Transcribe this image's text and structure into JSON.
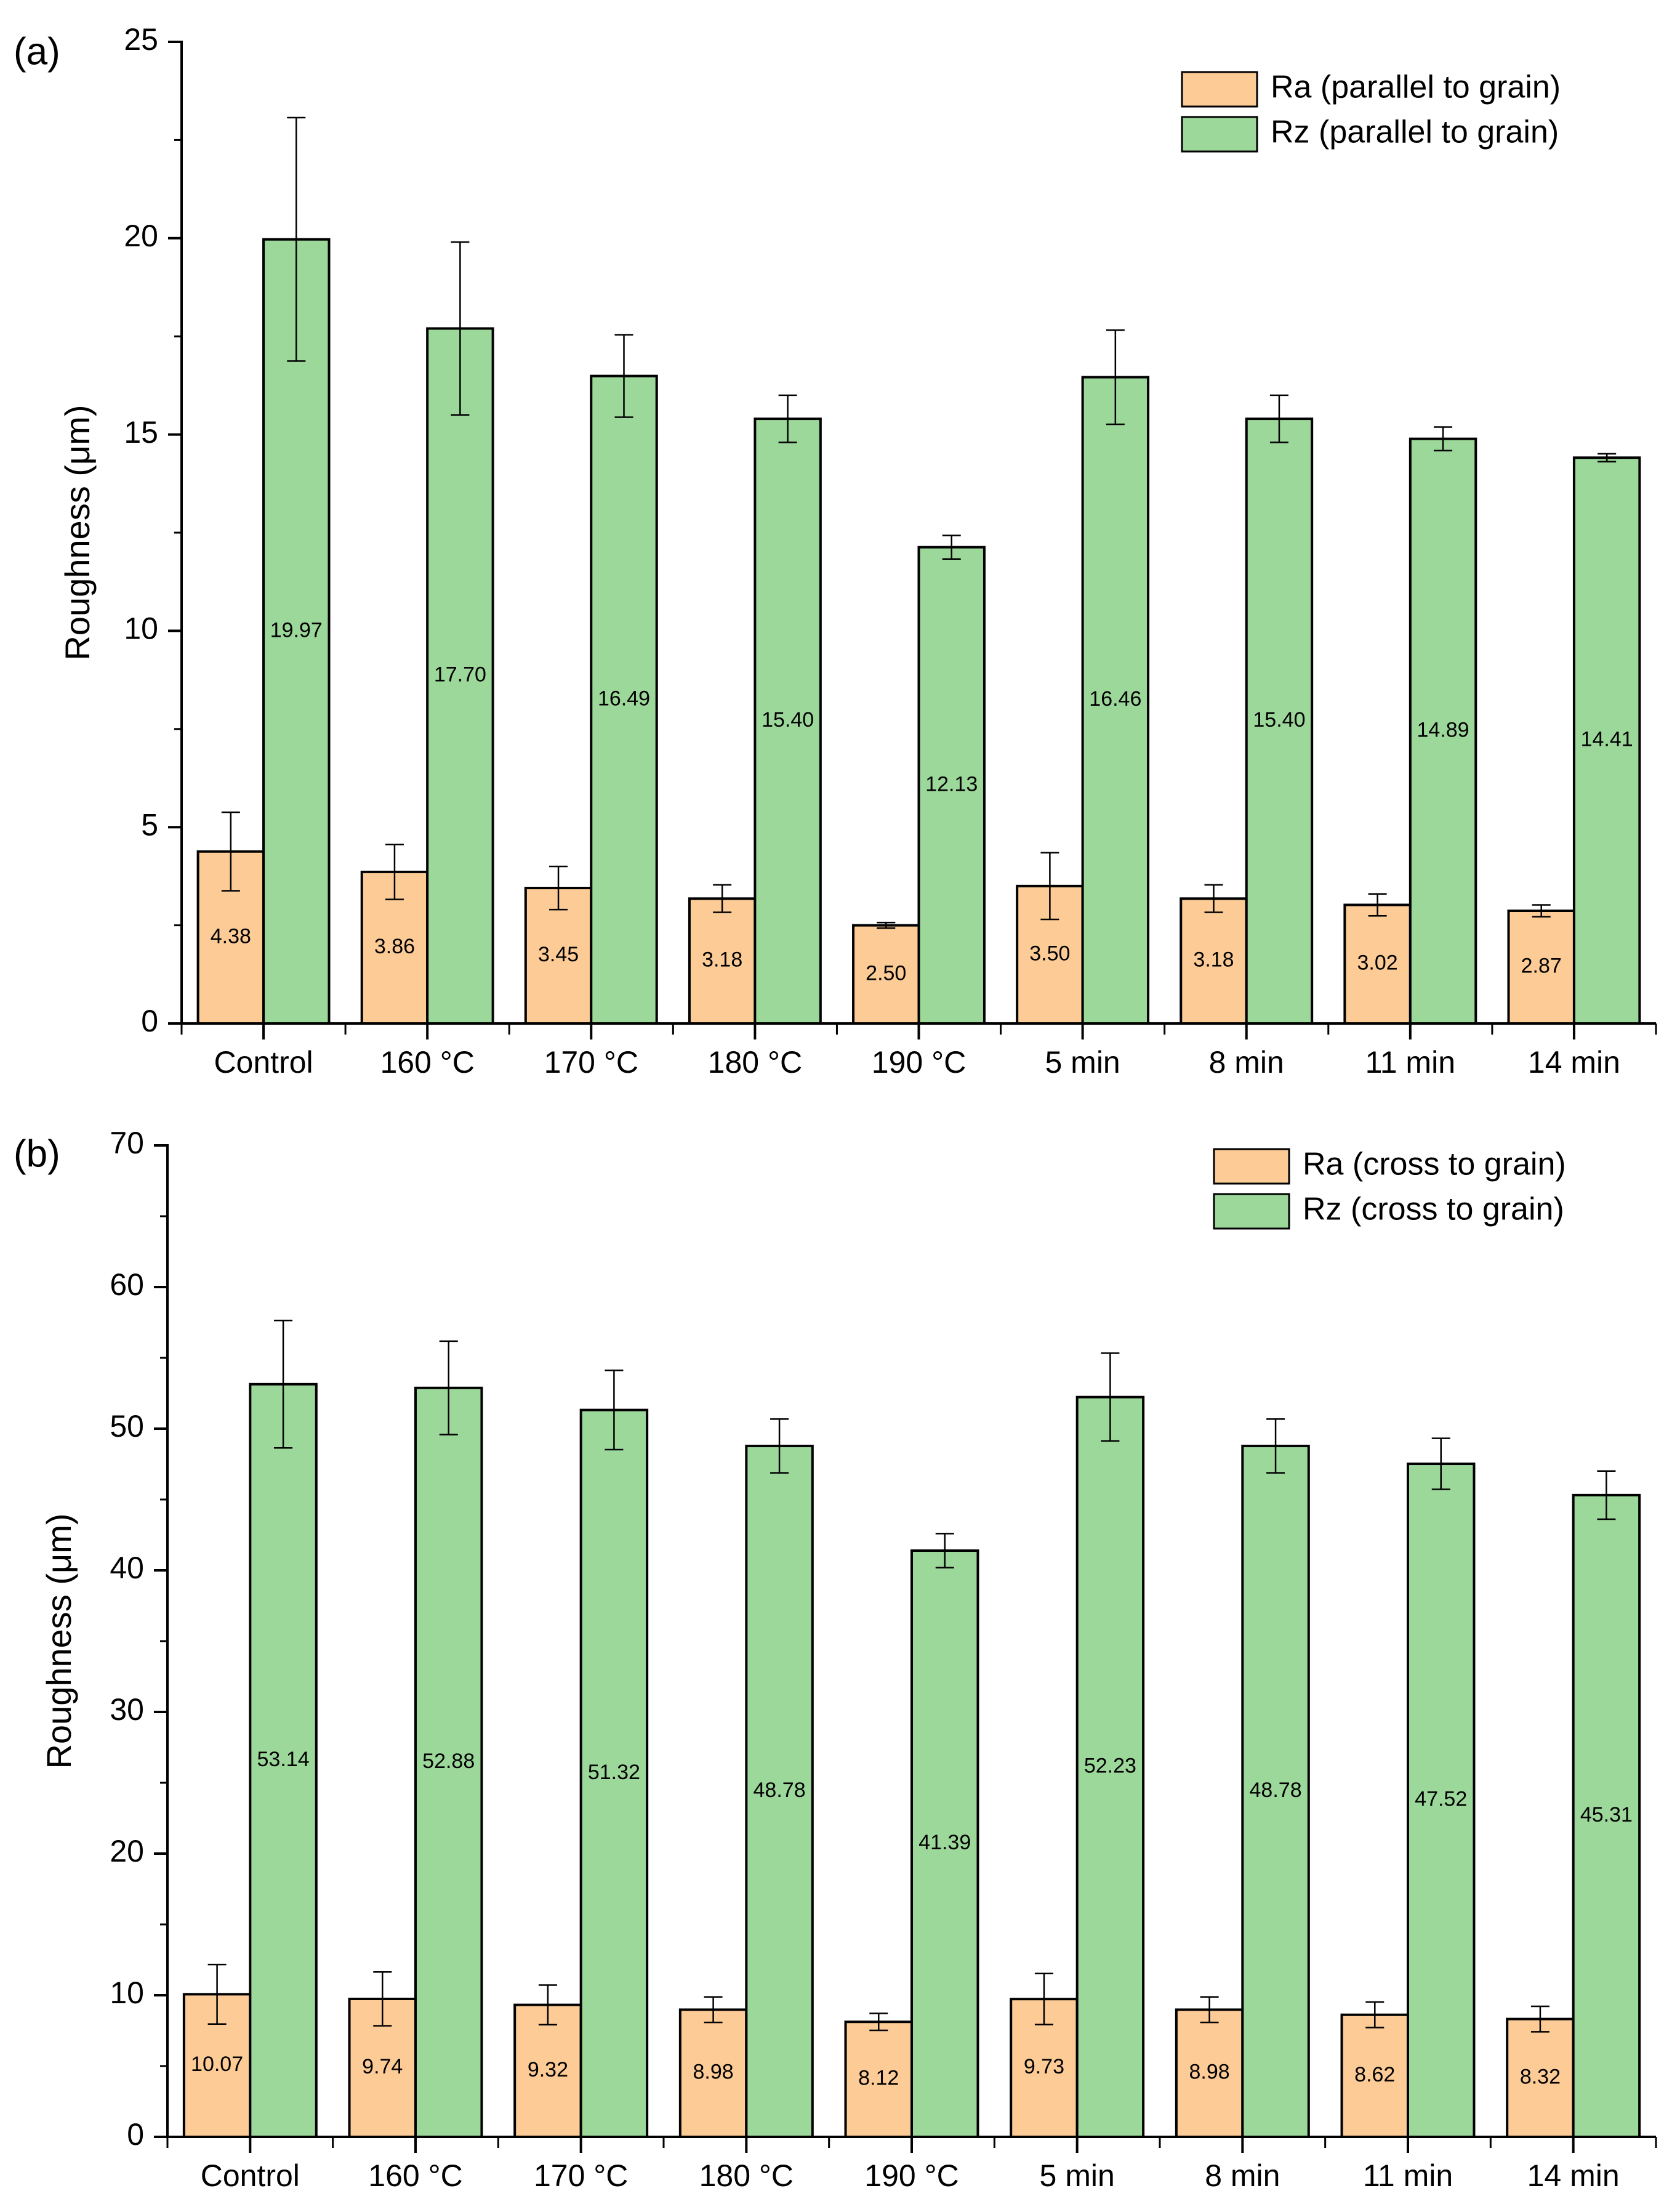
{
  "colors": {
    "ra": "#FCCB96",
    "rz": "#9DD89B",
    "outline": "#000000"
  },
  "chart_data": [
    {
      "type": "bar",
      "panel_label": "(a)",
      "categories": [
        "Control",
        "160 °C",
        "170 °C",
        "180 °C",
        "190 °C",
        "5 min",
        "8 min",
        "11 min",
        "14 min"
      ],
      "ylabel": "Roughness (μm)",
      "xlabel": "",
      "ylim": [
        0,
        25
      ],
      "yticks": [
        0,
        5,
        10,
        15,
        20,
        25
      ],
      "legend_position": "top-right",
      "series": [
        {
          "name": "Ra (parallel to grain)",
          "color": "#FCCB96",
          "values": [
            4.38,
            3.86,
            3.45,
            3.18,
            2.5,
            3.5,
            3.18,
            3.02,
            2.87
          ],
          "labels": [
            "4.38",
            "3.86",
            "3.45",
            "3.18",
            "2.50",
            "3.50",
            "3.18",
            "3.02",
            "2.87"
          ],
          "errors": [
            1.0,
            0.7,
            0.55,
            0.35,
            0.07,
            0.85,
            0.35,
            0.28,
            0.15
          ]
        },
        {
          "name": "Rz (parallel to grain)",
          "color": "#9DD89B",
          "values": [
            19.97,
            17.7,
            16.49,
            15.4,
            12.13,
            16.46,
            15.4,
            14.89,
            14.41
          ],
          "labels": [
            "19.97",
            "17.70",
            "16.49",
            "15.40",
            "12.13",
            "16.46",
            "15.40",
            "14.89",
            "14.41"
          ],
          "errors": [
            3.1,
            2.2,
            1.05,
            0.6,
            0.3,
            1.2,
            0.6,
            0.3,
            0.1
          ]
        }
      ]
    },
    {
      "type": "bar",
      "panel_label": "(b)",
      "categories": [
        "Control",
        "160 °C",
        "170 °C",
        "180 °C",
        "190 °C",
        "5 min",
        "8 min",
        "11 min",
        "14 min"
      ],
      "ylabel": "Roughness (μm)",
      "xlabel": "",
      "ylim": [
        0,
        70
      ],
      "yticks": [
        0,
        10,
        20,
        30,
        40,
        50,
        60,
        70
      ],
      "legend_position": "top-right",
      "series": [
        {
          "name": "Ra (cross to grain)",
          "color": "#FCCB96",
          "values": [
            10.07,
            9.74,
            9.32,
            8.98,
            8.12,
            9.73,
            8.98,
            8.62,
            8.32
          ],
          "labels": [
            "10.07",
            "9.74",
            "9.32",
            "8.98",
            "8.12",
            "9.73",
            "8.98",
            "8.62",
            "8.32"
          ],
          "errors": [
            2.1,
            1.9,
            1.4,
            0.9,
            0.6,
            1.8,
            0.9,
            0.9,
            0.9
          ]
        },
        {
          "name": "Rz (cross to grain)",
          "color": "#9DD89B",
          "values": [
            53.14,
            52.88,
            51.32,
            48.78,
            41.39,
            52.23,
            48.78,
            47.52,
            45.31
          ],
          "labels": [
            "53.14",
            "52.88",
            "51.32",
            "48.78",
            "41.39",
            "52.23",
            "48.78",
            "47.52",
            "45.31"
          ],
          "errors": [
            4.5,
            3.3,
            2.8,
            1.9,
            1.2,
            3.1,
            1.9,
            1.8,
            1.7
          ]
        }
      ]
    }
  ]
}
